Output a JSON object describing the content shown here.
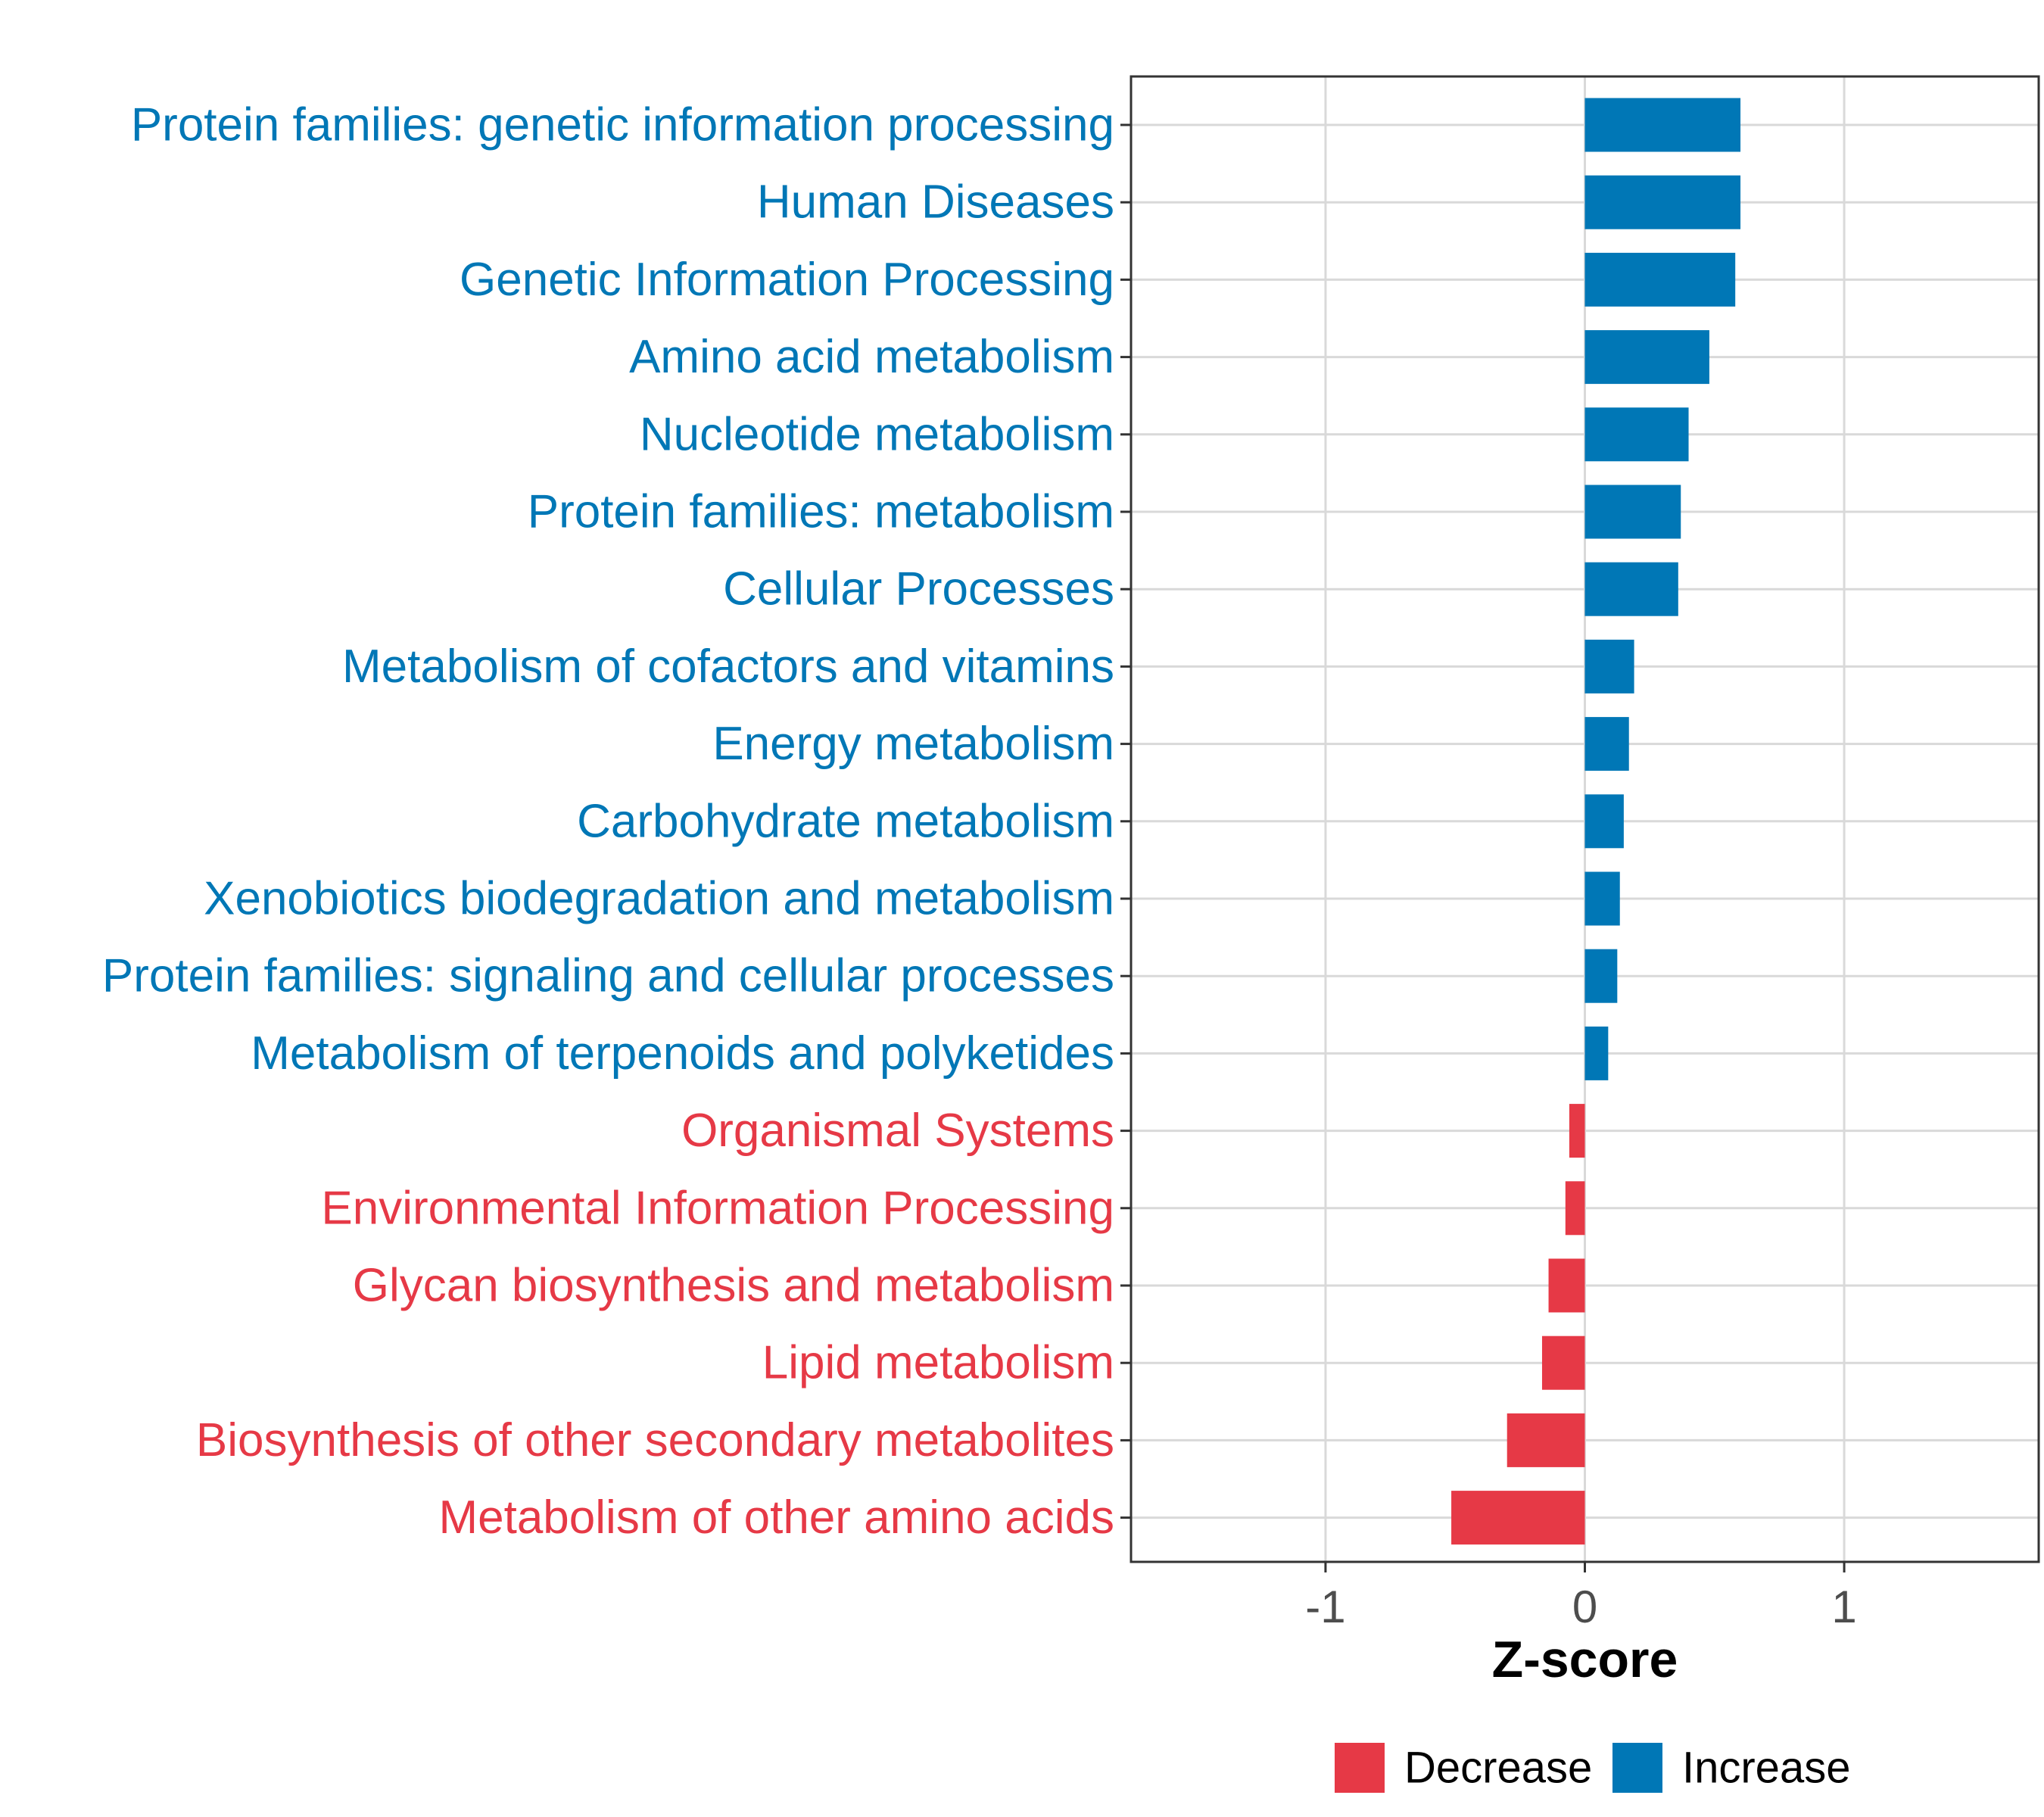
{
  "chart_data": {
    "type": "bar",
    "orientation": "horizontal",
    "title": "",
    "xlabel": "Z-score",
    "ylabel": "",
    "xlim": [
      -1.75,
      1.75
    ],
    "x_ticks": [
      -1,
      0,
      1
    ],
    "x_tick_labels": [
      "-1",
      "0",
      "1"
    ],
    "grid": true,
    "legend_position": "bottom",
    "categories": [
      "Protein families: genetic information processing",
      "Human Diseases",
      "Genetic Information Processing",
      "Amino acid metabolism",
      "Nucleotide metabolism",
      "Protein families: metabolism",
      "Cellular Processes",
      "Metabolism of cofactors and vitamins",
      "Energy metabolism",
      "Carbohydrate metabolism",
      "Xenobiotics biodegradation and metabolism",
      "Protein families: signaling and cellular processes",
      "Metabolism of terpenoids and polyketides",
      "Organismal Systems",
      "Environmental Information Processing",
      "Glycan biosynthesis and metabolism",
      "Lipid metabolism",
      "Biosynthesis of other secondary metabolites",
      "Metabolism of other amino acids"
    ],
    "values": [
      0.6,
      0.6,
      0.58,
      0.48,
      0.4,
      0.37,
      0.36,
      0.19,
      0.17,
      0.15,
      0.135,
      0.125,
      0.09,
      -0.06,
      -0.075,
      -0.14,
      -0.165,
      -0.3,
      -0.515
    ],
    "groups": [
      "Increase",
      "Increase",
      "Increase",
      "Increase",
      "Increase",
      "Increase",
      "Increase",
      "Increase",
      "Increase",
      "Increase",
      "Increase",
      "Increase",
      "Increase",
      "Decrease",
      "Decrease",
      "Decrease",
      "Decrease",
      "Decrease",
      "Decrease"
    ],
    "legend": [
      {
        "name": "Decrease",
        "color": "#e63946"
      },
      {
        "name": "Increase",
        "color": "#0077b6"
      }
    ],
    "colors": {
      "Increase": "#0077b6",
      "Decrease": "#e63946",
      "grid": "#d9d9d9",
      "frame": "#333333"
    }
  }
}
